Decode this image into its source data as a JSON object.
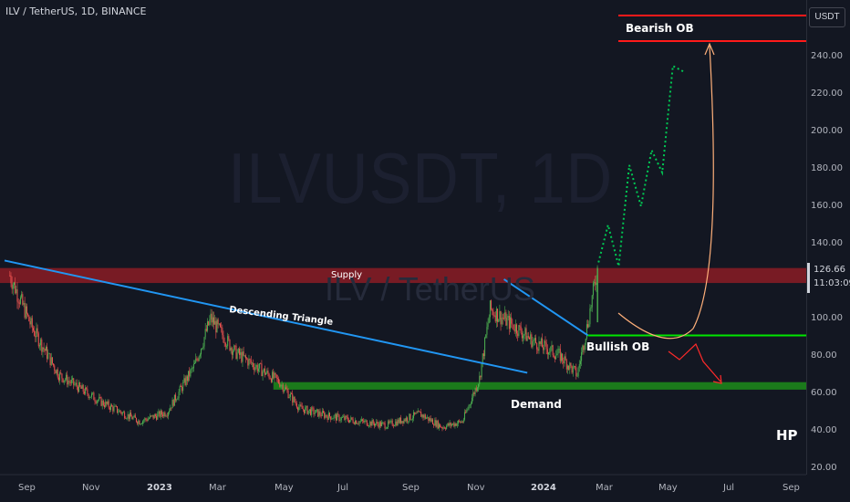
{
  "header": {
    "title": "ILV / TetherUS, 1D, BINANCE"
  },
  "watermark": {
    "symbol": "ILVUSDT, 1D",
    "name": "ILV / TetherUS"
  },
  "price_axis": {
    "currency_button": "USDT",
    "last_price": "126.66",
    "countdown": "11:03:09",
    "ticks": [
      "240.00",
      "220.00",
      "200.00",
      "180.00",
      "160.00",
      "140.00",
      "120.00",
      "100.00",
      "80.00",
      "60.00",
      "40.00",
      "20.00"
    ]
  },
  "time_axis": {
    "ticks": [
      "Sep",
      "Nov",
      "2023",
      "Mar",
      "May",
      "Jul",
      "Sep",
      "Nov",
      "2024",
      "Mar",
      "May",
      "Jul",
      "Sep"
    ]
  },
  "annotations": {
    "bearish_ob": "Bearish OB",
    "supply": "Supply",
    "descending_triangle": "Descending Triangle",
    "bullish_ob": "Bullish OB",
    "demand": "Demand",
    "author": "HP"
  },
  "colors": {
    "background": "#131722",
    "up": "#26a69a",
    "candle_up": "#4caf50",
    "candle_down": "#ef5350",
    "trendline": "#2196f3",
    "supply_zone": "#8b1c25",
    "demand_zone": "#1b7a1b",
    "bearish_ob_line": "#ff1a1a",
    "bullish_ob_line": "#00e600",
    "projection": "#00c853",
    "arc": "#ffb07a"
  },
  "chart_data": {
    "type": "candlestick",
    "title": "ILV / TetherUS, 1D, BINANCE",
    "x_range": [
      "2022-08-15",
      "2024-09-30"
    ],
    "ylim": [
      20,
      260
    ],
    "close_path": {
      "dates": [
        "2022-08-20",
        "2022-09-10",
        "2022-10-05",
        "2022-11-15",
        "2022-12-20",
        "2023-01-15",
        "2023-02-10",
        "2023-02-25",
        "2023-03-20",
        "2023-04-15",
        "2023-05-01",
        "2023-05-20",
        "2023-06-15",
        "2023-07-15",
        "2023-08-10",
        "2023-09-10",
        "2023-10-01",
        "2023-10-20",
        "2023-11-05",
        "2023-11-15",
        "2023-12-10",
        "2023-12-25",
        "2024-01-20",
        "2024-02-05",
        "2024-02-15",
        "2024-02-24"
      ],
      "values": [
        123,
        95,
        70,
        55,
        45,
        50,
        75,
        100,
        82,
        72,
        66,
        52,
        48,
        45,
        43,
        49,
        42,
        45,
        68,
        105,
        95,
        88,
        80,
        70,
        98,
        126.66
      ]
    },
    "zones": [
      {
        "name": "Supply",
        "y_from": 119,
        "y_to": 127
      },
      {
        "name": "Demand",
        "y_from": 62,
        "y_to": 66
      },
      {
        "name": "Bullish OB",
        "y": 91
      },
      {
        "name": "Bearish OB",
        "y_from": 248,
        "y_to": 262
      }
    ],
    "projection": {
      "dates": [
        "2024-02-25",
        "2024-03-05",
        "2024-03-15",
        "2024-03-25",
        "2024-04-05",
        "2024-04-15",
        "2024-04-25",
        "2024-05-05",
        "2024-05-15"
      ],
      "values": [
        130,
        150,
        128,
        182,
        160,
        190,
        178,
        235,
        232
      ]
    }
  }
}
